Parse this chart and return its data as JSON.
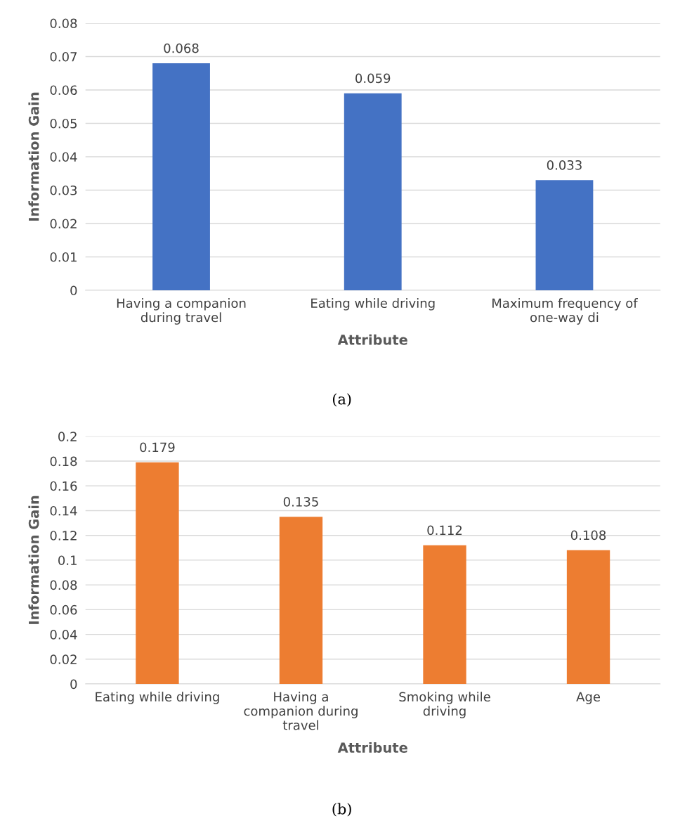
{
  "chart_data": [
    {
      "type": "bar",
      "xlabel": "Attribute",
      "ylabel": "Information Gain",
      "categories": [
        "Having a companion\nduring travel",
        "Eating while driving",
        "Maximum frequency of\none-way di"
      ],
      "values": [
        0.068,
        0.059,
        0.033
      ],
      "color": "#4472c4",
      "ylim": [
        0,
        0.08
      ],
      "yticks": [
        {
          "value": 0,
          "label": "0"
        },
        0.01,
        0.02,
        0.03,
        0.04,
        0.05,
        0.06,
        0.07,
        0.08
      ],
      "grid": "y",
      "data_labels": true,
      "annotations": [
        "(a)"
      ]
    },
    {
      "type": "bar",
      "xlabel": "Attribute",
      "ylabel": "Information Gain",
      "categories": [
        "Eating while driving",
        "Having a\ncompanion during\ntravel",
        "Smoking while\ndriving",
        "Age"
      ],
      "values": [
        0.179,
        0.135,
        0.112,
        0.108
      ],
      "color": "#ed7d31",
      "ylim": [
        0,
        0.2
      ],
      "yticks": [
        {
          "value": 0,
          "label": "0"
        },
        0.02,
        0.04,
        0.06,
        0.08,
        {
          "value": 0.1,
          "label": "0.1"
        },
        0.12,
        0.14,
        0.16,
        0.18,
        {
          "value": 0.2,
          "label": "0.2"
        }
      ],
      "grid": "y",
      "data_labels": true,
      "annotations": [
        "(b)"
      ]
    }
  ]
}
